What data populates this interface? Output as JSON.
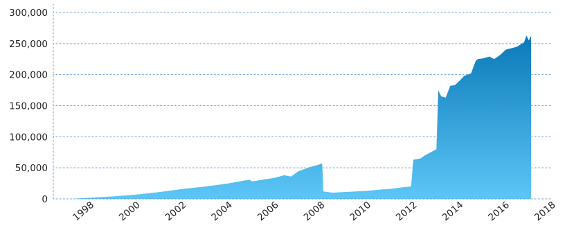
{
  "chart_data": {
    "type": "area",
    "title": "",
    "xlabel": "",
    "ylabel": "",
    "xlim": [
      1996.4,
      2018
    ],
    "ylim": [
      0,
      300000
    ],
    "x_ticks": [
      "1998",
      "2000",
      "2002",
      "2004",
      "2006",
      "2008",
      "2010",
      "2012",
      "2014",
      "2016",
      "2018"
    ],
    "y_ticks": [
      "0",
      "50,000",
      "100,000",
      "150,000",
      "200,000",
      "250,000",
      "300,000"
    ],
    "grid": "horizontal",
    "legend": "none",
    "fill_color_top": "#0a79b8",
    "fill_color_bottom": "#5cc6f7",
    "grid_color": "#5b9bd5",
    "series": [
      {
        "x": [
          1997.2,
          1998.0,
          1999.0,
          2000.0,
          2001.0,
          2002.0,
          2003.0,
          2004.0,
          2004.9,
          2005.0,
          2005.5,
          2006.0,
          2006.4,
          2006.7,
          2007.0,
          2007.5,
          2007.9,
          2008.05,
          2008.1,
          2008.5,
          2009.0,
          2009.5,
          2010.0,
          2010.6,
          2011.0,
          2011.6,
          2011.9,
          2012.0,
          2012.3,
          2012.5,
          2012.8,
          2013.0,
          2013.08,
          2013.2,
          2013.4,
          2013.6,
          2013.8,
          2014.0,
          2014.2,
          2014.5,
          2014.7,
          2014.8,
          2015.0,
          2015.3,
          2015.5,
          2015.7,
          2015.8,
          2016.0,
          2016.3,
          2016.5,
          2016.7,
          2016.8,
          2016.9,
          2017.0,
          2017.1
        ],
        "values": [
          0,
          2000,
          4000,
          7000,
          11000,
          16000,
          20000,
          25000,
          31000,
          28000,
          31000,
          34000,
          38000,
          36000,
          44000,
          51000,
          55000,
          57000,
          12000,
          10000,
          11000,
          12000,
          13000,
          15000,
          16000,
          19000,
          20000,
          63000,
          65000,
          70000,
          76000,
          80000,
          175000,
          165000,
          163000,
          182000,
          183000,
          190000,
          198000,
          202000,
          222000,
          225000,
          226000,
          229000,
          225000,
          230000,
          233000,
          240000,
          243000,
          245000,
          250000,
          252000,
          263000,
          255000,
          262000
        ]
      }
    ]
  }
}
